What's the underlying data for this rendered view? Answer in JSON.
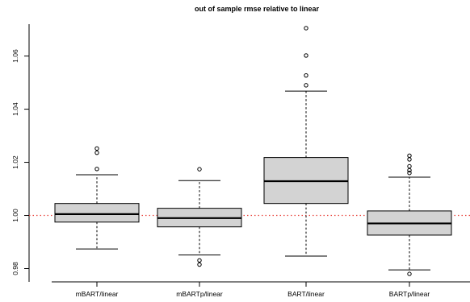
{
  "chart_data": {
    "type": "boxplot",
    "title": "out of sample rmse relative to linear",
    "xlabel": "",
    "ylabel": "",
    "ylim": [
      0.975,
      1.072
    ],
    "yticks": [
      0.98,
      1.0,
      1.02,
      1.04,
      1.06
    ],
    "ytick_labels": [
      "0.98",
      "1.00",
      "1.02",
      "1.04",
      "1.06"
    ],
    "reference_line": {
      "y": 1.0,
      "style": "dotted",
      "color": "#e8413a"
    },
    "box_fill": "#d3d3d3",
    "categories": [
      "mBART/linear",
      "mBARTp/linear",
      "BART/linear",
      "BARTp/linear"
    ],
    "boxes": [
      {
        "label": "mBART/linear",
        "whisker_low": 0.9874,
        "q1": 0.9975,
        "median": 1.0005,
        "q3": 1.0045,
        "whisker_high": 1.0153,
        "outliers": [
          1.0175,
          1.0236,
          1.0252
        ]
      },
      {
        "label": "mBARTp/linear",
        "whisker_low": 0.9851,
        "q1": 0.9957,
        "median": 0.999,
        "q3": 1.0027,
        "whisker_high": 1.0131,
        "outliers": [
          1.0174,
          0.9831,
          0.9815
        ]
      },
      {
        "label": "BART/linear",
        "whisker_low": 0.9847,
        "q1": 1.0045,
        "median": 1.0129,
        "q3": 1.0218,
        "whisker_high": 1.0468,
        "outliers": [
          1.049,
          1.0527,
          1.0602,
          1.0705
        ]
      },
      {
        "label": "BARTp/linear",
        "whisker_low": 0.9795,
        "q1": 0.9926,
        "median": 0.997,
        "q3": 1.0017,
        "whisker_high": 1.0144,
        "outliers": [
          1.016,
          1.017,
          1.0185,
          1.0211,
          1.0225,
          0.978
        ]
      }
    ]
  }
}
